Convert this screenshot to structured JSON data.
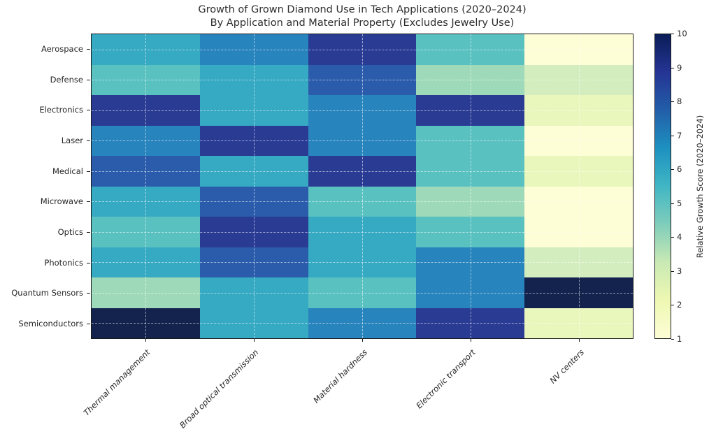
{
  "title": {
    "line1": "Growth of Grown Diamond Use in Tech Applications (2020–2024)",
    "line2": "By Application and Material Property (Excludes Jewelry Use)"
  },
  "chart_data": {
    "type": "heatmap",
    "rows": [
      "Aerospace",
      "Defense",
      "Electronics",
      "Laser",
      "Medical",
      "Microwave",
      "Optics",
      "Photonics",
      "Quantum Sensors",
      "Semiconductors"
    ],
    "columns": [
      "Thermal management",
      "Broad optical transmission",
      "Material hardness",
      "Electronic transport",
      "NV centers"
    ],
    "values": [
      [
        6,
        7,
        9,
        5,
        1
      ],
      [
        5,
        6,
        8,
        4,
        3
      ],
      [
        9,
        6,
        7,
        9,
        2
      ],
      [
        7,
        9,
        7,
        5,
        1
      ],
      [
        8,
        6,
        9,
        5,
        2
      ],
      [
        6,
        8,
        5,
        4,
        1
      ],
      [
        5,
        9,
        6,
        5,
        1
      ],
      [
        6,
        8,
        6,
        7,
        3
      ],
      [
        4,
        6,
        5,
        7,
        10
      ],
      [
        10,
        6,
        7,
        9,
        2
      ]
    ],
    "colorbar": {
      "label": "Relative Growth Score (2020–2024)",
      "ticks": [
        1,
        2,
        3,
        4,
        5,
        6,
        7,
        8,
        9,
        10
      ],
      "vmin": 1,
      "vmax": 10
    },
    "colormap": {
      "name": "YlGnBu",
      "value_colors": {
        "1": "#fdfdd6",
        "2": "#e9f6bc",
        "3": "#d3edbe",
        "4": "#9ed9ba",
        "5": "#5ac1c1",
        "6": "#36a9c3",
        "7": "#2884bd",
        "8": "#2b5cab",
        "9": "#2a3b94",
        "10": "#13234e"
      },
      "gradient_stops_bottom_to_top": [
        "#fdfdd6",
        "#eef8b2",
        "#c9e9b4",
        "#7fcdbb",
        "#41b6c4",
        "#1d91c0",
        "#225ea8",
        "#253494",
        "#0a1d57"
      ]
    },
    "grid": true,
    "legend_position": "right-colorbar",
    "xlabel": "",
    "ylabel": ""
  }
}
